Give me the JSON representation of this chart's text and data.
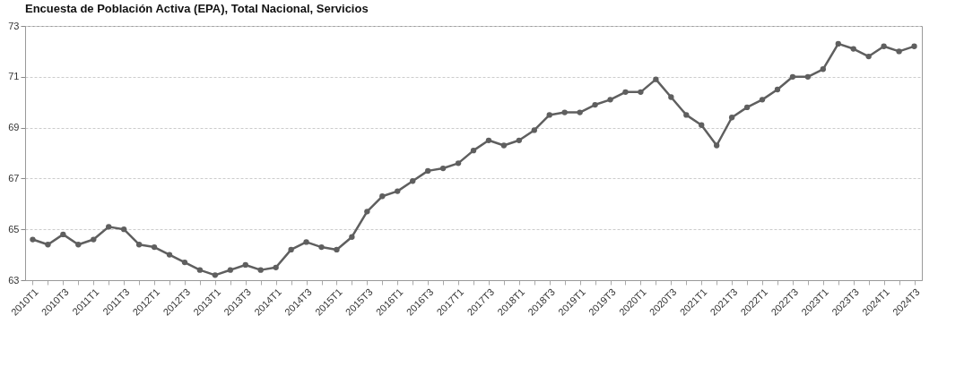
{
  "chart_data": {
    "type": "line",
    "title": "Encuesta de Población Activa (EPA), Total Nacional, Servicios",
    "categories": [
      "2010T1",
      null,
      "2010T3",
      null,
      "2011T1",
      null,
      "2011T3",
      null,
      "2012T1",
      null,
      "2012T3",
      null,
      "2013T1",
      null,
      "2013T3",
      null,
      "2014T1",
      null,
      "2014T3",
      null,
      "2015T1",
      null,
      "2015T3",
      null,
      "2016T1",
      null,
      "2016T3",
      null,
      "2017T1",
      null,
      "2017T3",
      null,
      "2018T1",
      null,
      "2018T3",
      null,
      "2019T1",
      null,
      "2019T3",
      null,
      "2020T1",
      null,
      "2020T3",
      null,
      "2021T1",
      null,
      "2021T3",
      null,
      "2022T1",
      null,
      "2022T3",
      null,
      "2023T1",
      null,
      "2023T3",
      null,
      "2024T1",
      null,
      "2024T3"
    ],
    "series": [
      {
        "color": "#5f5f5f",
        "values": [
          64.6,
          64.4,
          64.8,
          64.4,
          64.6,
          65.1,
          65.0,
          64.4,
          64.3,
          64.0,
          63.7,
          63.4,
          63.2,
          63.4,
          63.6,
          63.4,
          63.5,
          64.2,
          64.5,
          64.3,
          64.2,
          64.7,
          65.7,
          66.3,
          66.5,
          66.9,
          67.3,
          67.4,
          67.6,
          68.1,
          68.5,
          68.3,
          68.5,
          68.9,
          69.5,
          69.6,
          69.6,
          69.9,
          70.1,
          70.4,
          70.4,
          70.9,
          70.2,
          69.5,
          69.1,
          68.3,
          69.4,
          69.8,
          70.1,
          70.5,
          71.0,
          71.0,
          71.3,
          72.3,
          72.1,
          71.8,
          72.2,
          72.0,
          72.2
        ]
      }
    ],
    "ylim": [
      63,
      73
    ],
    "yticks": [
      63,
      65,
      67,
      69,
      71,
      73
    ],
    "grid": "y",
    "marker": "circle",
    "line_style": "solid"
  }
}
